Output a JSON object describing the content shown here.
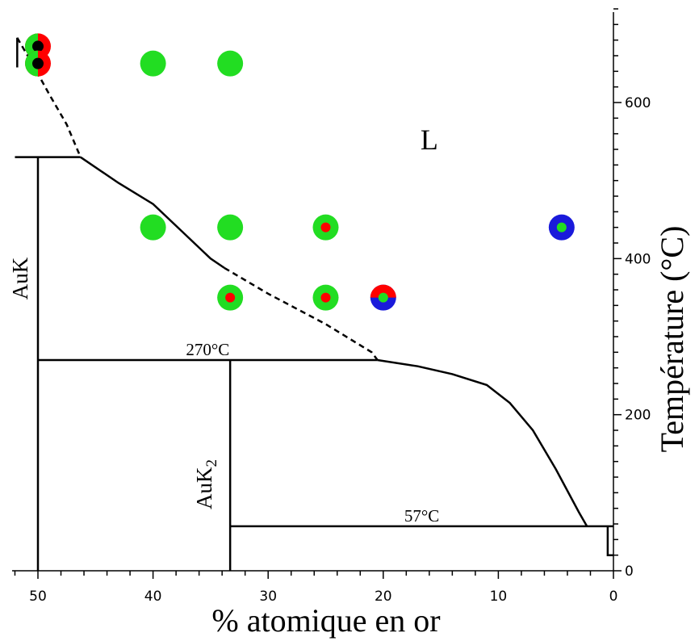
{
  "chart_data": {
    "type": "phase-diagram",
    "xlabel": "% atomique en or",
    "ylabel": "Température (°C)",
    "x_direction": "reversed",
    "xlim": [
      0,
      52
    ],
    "ylim": [
      0,
      720
    ],
    "x_ticks": [
      {
        "value": 50,
        "label": "50"
      },
      {
        "value": 40,
        "label": "40"
      },
      {
        "value": 30,
        "label": "30"
      },
      {
        "value": 20,
        "label": "20"
      },
      {
        "value": 10,
        "label": "10"
      },
      {
        "value": 0,
        "label": "0"
      }
    ],
    "y_ticks": [
      {
        "value": 0,
        "label": "0"
      },
      {
        "value": 200,
        "label": "200"
      },
      {
        "value": 400,
        "label": "400"
      },
      {
        "value": 600,
        "label": "600"
      }
    ],
    "region_labels": [
      {
        "text": "L",
        "x": 16,
        "y": 540
      }
    ],
    "compounds": [
      {
        "name": "AuK",
        "base": "AuK",
        "subscript": "",
        "x": 50,
        "y_range": [
          0,
          530
        ]
      },
      {
        "name": "AuK2",
        "base": "AuK",
        "subscript": "2",
        "x": 33.3,
        "y_range": [
          0,
          270
        ]
      }
    ],
    "horizontal_lines": [
      {
        "label": "",
        "y": 530,
        "x_range": [
          46.3,
          52
        ]
      },
      {
        "label": "270°C",
        "y": 270,
        "x_range": [
          20.5,
          50
        ]
      },
      {
        "label": "57°C",
        "y": 57,
        "x_range": [
          0,
          33.3
        ]
      }
    ],
    "liquidus_solid": [
      [
        46.3,
        530
      ],
      [
        43,
        497
      ],
      [
        40,
        470
      ],
      [
        37.5,
        435
      ],
      [
        35,
        400
      ],
      [
        33.8,
        388
      ]
    ],
    "liquidus_dashed": [
      [
        51.8,
        683
      ],
      [
        50.5,
        650
      ],
      [
        49,
        610
      ],
      [
        47.5,
        572
      ],
      [
        46.3,
        530
      ]
    ],
    "liquidus_dashed_2": [
      [
        33.8,
        388
      ],
      [
        30,
        355
      ],
      [
        25,
        316
      ],
      [
        21,
        280
      ],
      [
        20.5,
        270
      ]
    ],
    "liquidus_low": [
      [
        20.5,
        270
      ],
      [
        17,
        262
      ],
      [
        14,
        252
      ],
      [
        11,
        238
      ],
      [
        9,
        215
      ],
      [
        7,
        180
      ],
      [
        5,
        130
      ],
      [
        3,
        75
      ],
      [
        2.3,
        57
      ]
    ],
    "potassium_edge": [
      [
        0.5,
        57
      ],
      [
        0.5,
        20
      ],
      [
        0,
        20
      ]
    ],
    "series": [
      {
        "name": "",
        "type": "points",
        "points": [
          {
            "x": 50,
            "y": 672,
            "outer": "#ff0000",
            "outer_half": "#22dd22",
            "inner": "#000000"
          },
          {
            "x": 50,
            "y": 650,
            "outer": "#ff0000",
            "outer_half": "#22dd22",
            "inner": "#000000"
          },
          {
            "x": 40,
            "y": 650,
            "outer": "#22dd22",
            "inner": ""
          },
          {
            "x": 33.3,
            "y": 650,
            "outer": "#22dd22",
            "inner": ""
          },
          {
            "x": 40,
            "y": 440,
            "outer": "#22dd22",
            "inner": ""
          },
          {
            "x": 33.3,
            "y": 440,
            "outer": "#22dd22",
            "inner": ""
          },
          {
            "x": 25,
            "y": 440,
            "outer": "#22dd22",
            "inner": "#ff0000"
          },
          {
            "x": 4.5,
            "y": 440,
            "outer": "#1a1adb",
            "inner": "#22dd22"
          },
          {
            "x": 33.3,
            "y": 350,
            "outer": "#22dd22",
            "inner": "#ff0000"
          },
          {
            "x": 25,
            "y": 350,
            "outer": "#22dd22",
            "inner": "#ff0000"
          },
          {
            "x": 20,
            "y": 350,
            "outer": "#1a1adb",
            "outer_top": "#ff0000",
            "inner": "#22dd22"
          }
        ]
      }
    ]
  }
}
